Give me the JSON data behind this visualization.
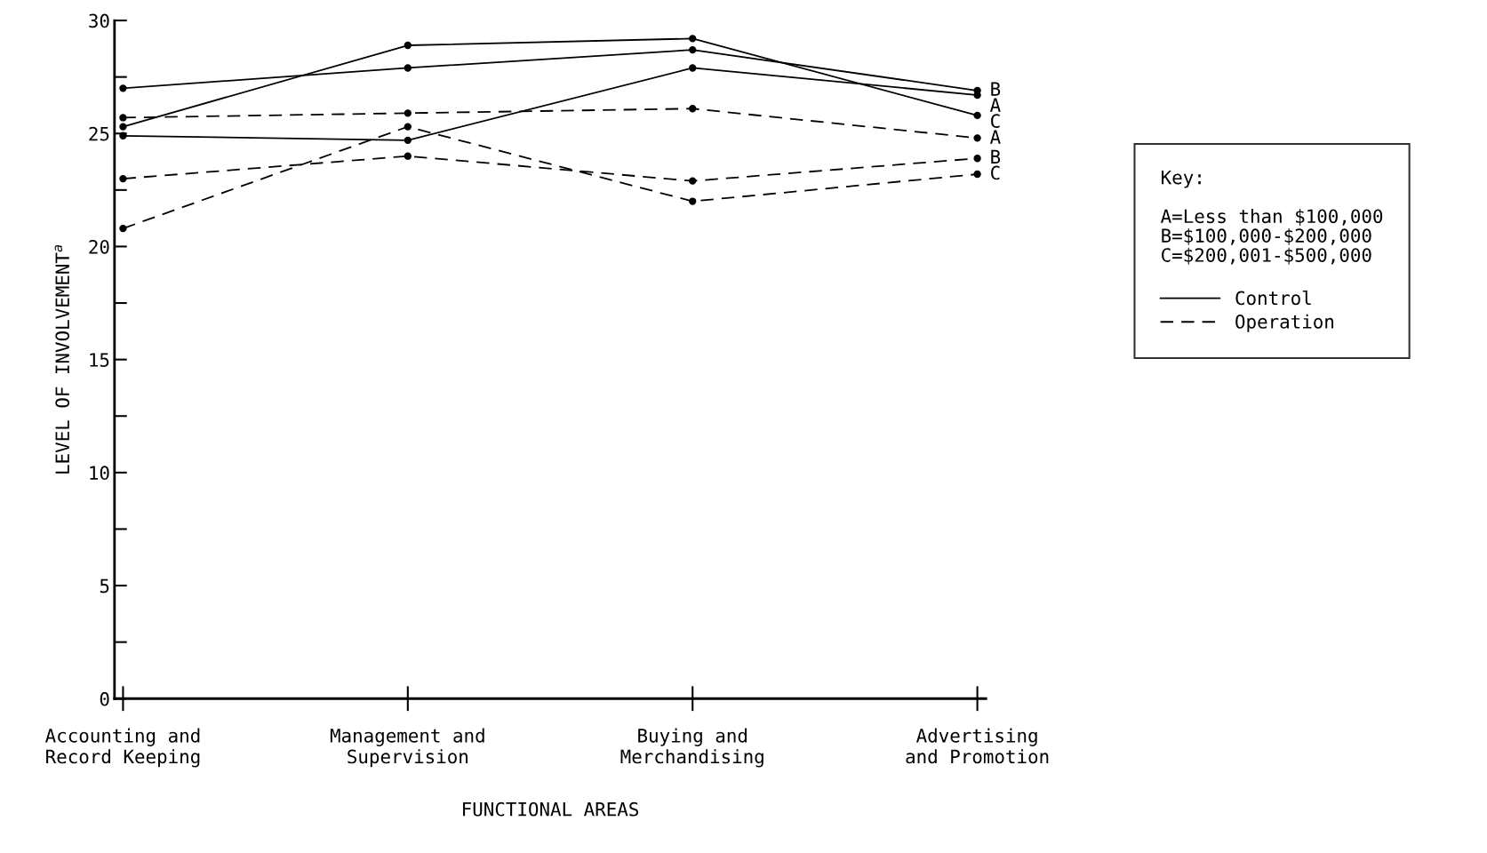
{
  "chart_data": {
    "type": "line",
    "xlabel": "FUNCTIONAL AREAS",
    "ylabel": "LEVEL OF INVOLVEMENT$^{a}$",
    "categories": [
      "Accounting and\nRecord Keeping",
      "Management and\nSupervision",
      "Buying and\nMerchandising",
      "Advertising\nand Promotion"
    ],
    "series": [
      {
        "name": "C",
        "color": "#000000",
        "line_style": "solid",
        "values": [
          25.3,
          28.9,
          29.2,
          25.8
        ]
      },
      {
        "name": "B",
        "color": "#000000",
        "line_style": "solid",
        "values": [
          27.0,
          27.9,
          28.7,
          26.9
        ]
      },
      {
        "name": "A",
        "color": "#000000",
        "line_style": "solid",
        "values": [
          24.9,
          24.7,
          27.9,
          26.7
        ]
      },
      {
        "name": "A",
        "color": "#000000",
        "line_style": "dashed",
        "values": [
          25.7,
          25.9,
          26.1,
          24.8
        ]
      },
      {
        "name": "B",
        "color": "#000000",
        "line_style": "dashed",
        "values": [
          23.0,
          24.0,
          22.9,
          23.9
        ]
      },
      {
        "name": "C",
        "color": "#000000",
        "line_style": "dashed",
        "values": [
          20.8,
          25.3,
          22.0,
          23.2
        ]
      }
    ],
    "ylim": [
      0,
      30
    ],
    "yticks": [
      0,
      {
        "value": 2.5,
        "label": null
      },
      5,
      {
        "value": 7.5,
        "label": null
      },
      10,
      {
        "value": 12.5,
        "label": null
      },
      15,
      {
        "value": 17.5,
        "label": null
      },
      20,
      {
        "value": 22.5,
        "label": null
      },
      25,
      {
        "value": 27.5,
        "label": null
      },
      30
    ],
    "marker": "circle",
    "grid": false,
    "legend": "right",
    "legend_title": "Key:",
    "annotations": [
      "A=Less than $100,000",
      "B=$100,000-$200,000",
      "C=$200,001-$500,000",
      "Control",
      "Operation"
    ]
  }
}
